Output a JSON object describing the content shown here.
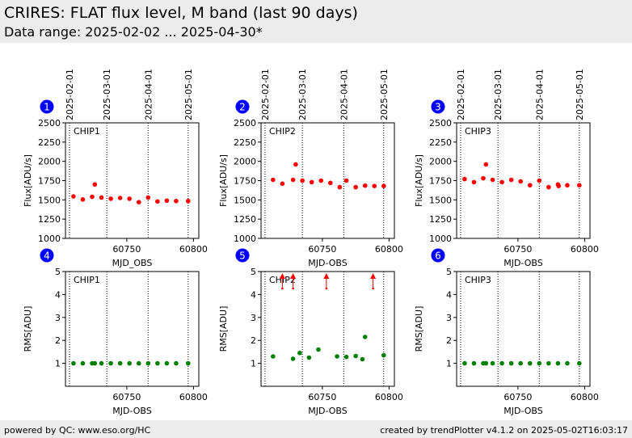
{
  "header": {
    "title": "CRIRES: FLAT flux level, M band (last 90 days)",
    "subtitle": "Data range: 2025-02-02 ... 2025-04-30*"
  },
  "footer": {
    "left": "powered by QC: www.eso.org/HC",
    "right": "created by trendPlotter v4.1.2 on 2025-05-02T16:03:17"
  },
  "colors": {
    "flux_points": "#ff0000",
    "rms_points": "#008000",
    "badge": "#0000ff",
    "outlier_arrow": "#ff0000"
  },
  "date_markers": {
    "labels": [
      "2025-02-01",
      "2025-03-01",
      "2025-04-01",
      "2025-05-01"
    ],
    "mjd": [
      60707,
      60735,
      60766,
      60796
    ]
  },
  "chart_data": [
    {
      "type": "scatter",
      "panel": "1",
      "label": "CHIP1",
      "xlabel": "MJD_OBS",
      "ylabel": "Flux[ADU/s]",
      "xlim": [
        60704,
        60804
      ],
      "ylim": [
        1000,
        2500
      ],
      "xticks": [
        60750,
        60800
      ],
      "yticks": [
        1000,
        1250,
        1500,
        1750,
        2000,
        2250,
        2500
      ],
      "series": [
        {
          "x": [
            60710,
            60717,
            60724,
            60726,
            60731,
            60738,
            60745,
            60752,
            60759,
            60766,
            60773,
            60780,
            60787,
            60796
          ],
          "y": [
            1545,
            1505,
            1540,
            1700,
            1530,
            1515,
            1525,
            1515,
            1470,
            1530,
            1480,
            1490,
            1485,
            1485
          ]
        }
      ]
    },
    {
      "type": "scatter",
      "panel": "2",
      "label": "CHIP2",
      "xlabel": "MJD-OBS",
      "ylabel": "Flux[ADU/s]",
      "xlim": [
        60704,
        60804
      ],
      "ylim": [
        1000,
        2500
      ],
      "xticks": [
        60750,
        60800
      ],
      "yticks": [
        1000,
        1250,
        1500,
        1750,
        2000,
        2250,
        2500
      ],
      "series": [
        {
          "x": [
            60713,
            60720,
            60728,
            60730,
            60735,
            60742,
            60749,
            60756,
            60763,
            60768,
            60775,
            60782,
            60789,
            60796
          ],
          "y": [
            1760,
            1710,
            1760,
            1960,
            1750,
            1730,
            1750,
            1720,
            1665,
            1750,
            1665,
            1685,
            1680,
            1680
          ]
        }
      ]
    },
    {
      "type": "scatter",
      "panel": "3",
      "label": "CHIP3",
      "xlabel": "MJD-OBS",
      "ylabel": "Flux[ADU/s]",
      "xlim": [
        60704,
        60804
      ],
      "ylim": [
        1000,
        2500
      ],
      "xticks": [
        60750,
        60800
      ],
      "yticks": [
        1000,
        1250,
        1500,
        1750,
        2000,
        2250,
        2500
      ],
      "series": [
        {
          "x": [
            60710,
            60717,
            60724,
            60726,
            60731,
            60738,
            60745,
            60752,
            60759,
            60766,
            60773,
            60780,
            60780.5,
            60787,
            60796
          ],
          "y": [
            1770,
            1730,
            1780,
            1960,
            1760,
            1730,
            1760,
            1740,
            1690,
            1750,
            1665,
            1700,
            1680,
            1690,
            1690
          ]
        }
      ]
    },
    {
      "type": "scatter",
      "panel": "4",
      "label": "CHIP1",
      "xlabel": "MJD-OBS",
      "ylabel": "RMS[ADU]",
      "xlim": [
        60704,
        60804
      ],
      "ylim": [
        0,
        5
      ],
      "xticks": [
        60750,
        60800
      ],
      "yticks": [
        1,
        2,
        3,
        4,
        5
      ],
      "series": [
        {
          "x": [
            60710,
            60717,
            60724,
            60726,
            60731,
            60738,
            60745,
            60752,
            60759,
            60766,
            60773,
            60780,
            60787,
            60796
          ],
          "y": [
            1,
            1,
            1,
            1,
            1,
            1,
            1,
            1,
            1,
            1,
            1,
            1,
            1,
            1
          ]
        }
      ]
    },
    {
      "type": "scatter",
      "panel": "5",
      "label": "CHIP2",
      "xlabel": "MJD-OBS",
      "ylabel": "RMS[ADU]",
      "xlim": [
        60704,
        60804
      ],
      "ylim": [
        0,
        5
      ],
      "xticks": [
        60750,
        60800
      ],
      "yticks": [
        1,
        2,
        3,
        4,
        5
      ],
      "series": [
        {
          "x": [
            60713,
            60728,
            60733,
            60740,
            60747,
            60761,
            60768,
            60775,
            60780,
            60782,
            60796
          ],
          "y": [
            1.3,
            1.2,
            1.45,
            1.25,
            1.6,
            1.3,
            1.28,
            1.32,
            1.18,
            2.15,
            1.35
          ]
        }
      ],
      "outliers_above_range_x": [
        60720,
        60728,
        60753,
        60788
      ]
    },
    {
      "type": "scatter",
      "panel": "6",
      "label": "CHIP3",
      "xlabel": "MJD-OBS",
      "ylabel": "RMS[ADU]",
      "xlim": [
        60704,
        60804
      ],
      "ylim": [
        0,
        5
      ],
      "xticks": [
        60750,
        60800
      ],
      "yticks": [
        1,
        2,
        3,
        4,
        5
      ],
      "series": [
        {
          "x": [
            60710,
            60717,
            60724,
            60726,
            60731,
            60738,
            60745,
            60752,
            60759,
            60766,
            60773,
            60780,
            60787,
            60796
          ],
          "y": [
            1,
            1,
            1,
            1,
            1,
            1,
            1,
            1,
            1,
            1,
            1,
            1,
            1,
            1
          ]
        }
      ]
    }
  ]
}
